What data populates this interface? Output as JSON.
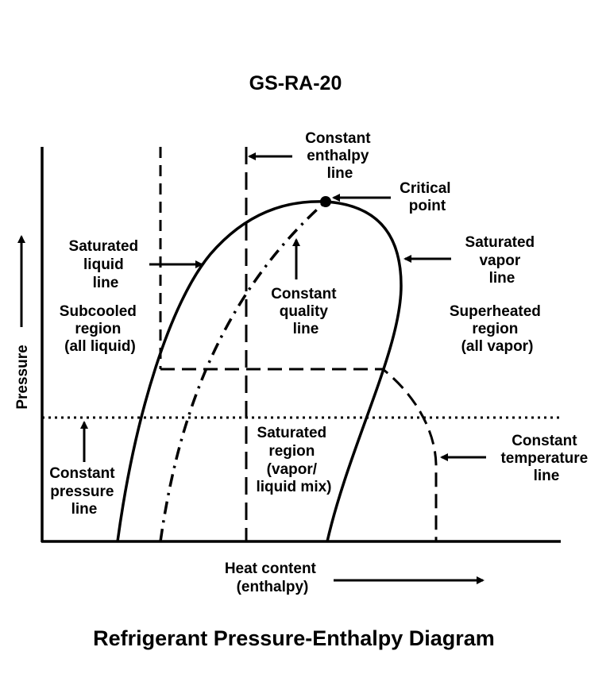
{
  "figure_id": "GS-RA-20",
  "caption": "Refrigerant Pressure-Enthalpy Diagram",
  "axes": {
    "y_label": "Pressure",
    "x_label_lines": [
      "Heat content",
      "(enthalpy)"
    ]
  },
  "labels": {
    "constant_enthalpy_line": [
      "Constant",
      "enthalpy",
      "line"
    ],
    "critical_point": [
      "Critical",
      "point"
    ],
    "saturated_liquid_line": [
      "Saturated",
      "liquid",
      "line"
    ],
    "saturated_vapor_line": [
      "Saturated",
      "vapor",
      "line"
    ],
    "constant_quality_line": [
      "Constant",
      "quality",
      "line"
    ],
    "subcooled_region": [
      "Subcooled",
      "region",
      "(all liquid)"
    ],
    "superheated_region": [
      "Superheated",
      "region",
      "(all vapor)"
    ],
    "saturated_region": [
      "Saturated",
      "region",
      "(vapor/",
      "liquid mix)"
    ],
    "constant_pressure_line": [
      "Constant",
      "pressure",
      "line"
    ],
    "constant_temperature_line": [
      "Constant",
      "temperature",
      "line"
    ]
  }
}
